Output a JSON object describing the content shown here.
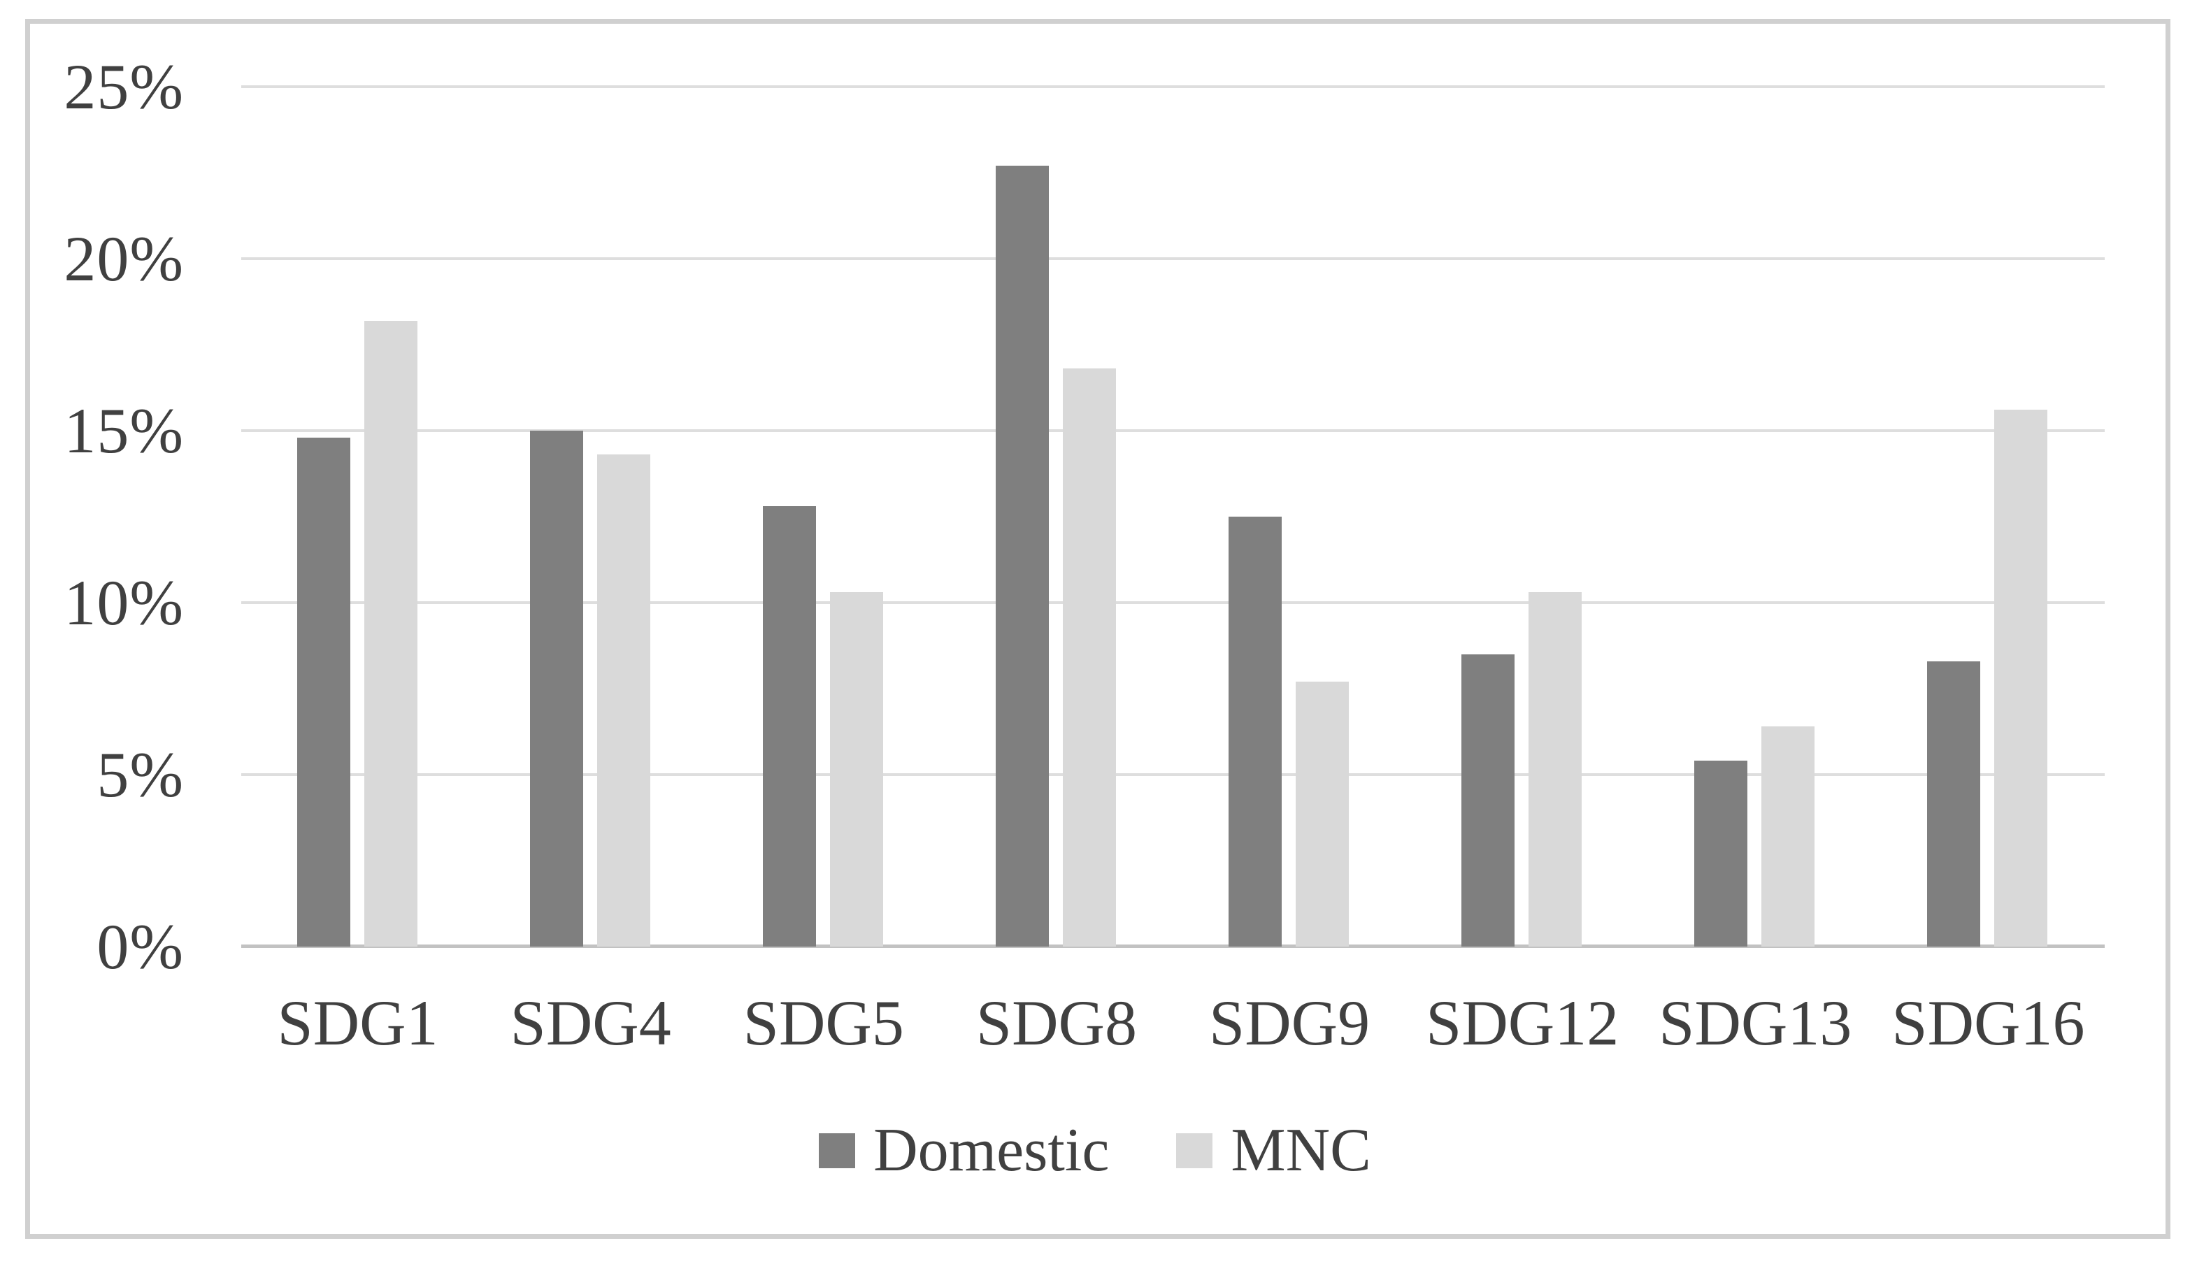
{
  "chart_data": {
    "type": "bar",
    "title": "",
    "xlabel": "",
    "ylabel": "",
    "unit": "%",
    "categories": [
      "SDG1",
      "SDG4",
      "SDG5",
      "SDG8",
      "SDG9",
      "SDG12",
      "SDG13",
      "SDG16"
    ],
    "series": [
      {
        "name": "Domestic",
        "color": "#7f7f7f",
        "values": [
          14.8,
          15.0,
          12.8,
          22.7,
          12.5,
          8.5,
          5.4,
          8.3
        ]
      },
      {
        "name": "MNC",
        "color": "#d9d9d9",
        "values": [
          18.2,
          14.3,
          10.3,
          16.8,
          7.7,
          10.3,
          6.4,
          15.6
        ]
      }
    ],
    "y_ticks": [
      {
        "label": "0%",
        "value": 0
      },
      {
        "label": "5%",
        "value": 5
      },
      {
        "label": "10%",
        "value": 10
      },
      {
        "label": "15%",
        "value": 15
      },
      {
        "label": "20%",
        "value": 20
      },
      {
        "label": "25%",
        "value": 25
      }
    ],
    "ylim": [
      0,
      25
    ],
    "grid": true,
    "legend_position": "bottom"
  },
  "style_colors": {
    "gridline": "#dedede",
    "axis_line": "#c2c2c2",
    "frame_border": "#d0d0d0",
    "text": "#404040",
    "background": "#ffffff"
  }
}
